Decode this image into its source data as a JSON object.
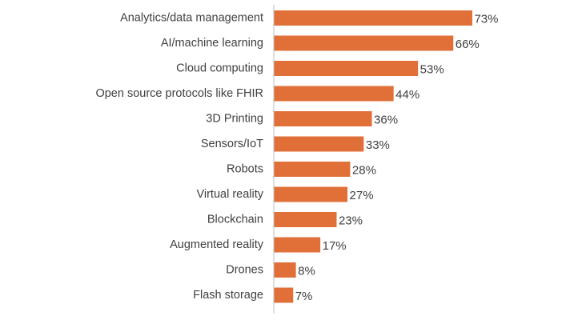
{
  "chart_data": {
    "type": "bar",
    "orientation": "horizontal",
    "categories": [
      "Analytics/data management",
      "AI/machine learning",
      "Cloud computing",
      "Open source protocols like FHIR",
      "3D Printing",
      "Sensors/IoT",
      "Robots",
      "Virtual reality",
      "Blockchain",
      "Augmented reality",
      "Drones",
      "Flash storage"
    ],
    "values": [
      73,
      66,
      53,
      44,
      36,
      33,
      28,
      27,
      23,
      17,
      8,
      7
    ],
    "value_labels": [
      "73%",
      "66%",
      "53%",
      "44%",
      "36%",
      "33%",
      "28%",
      "27%",
      "23%",
      "17%",
      "8%",
      "7%"
    ],
    "unit": "%",
    "xlim": [
      0,
      100
    ],
    "bar_color": "#E07038",
    "axis_color": "#BFBFBF",
    "text_color": "#404040",
    "grid": false,
    "legend": "none"
  }
}
